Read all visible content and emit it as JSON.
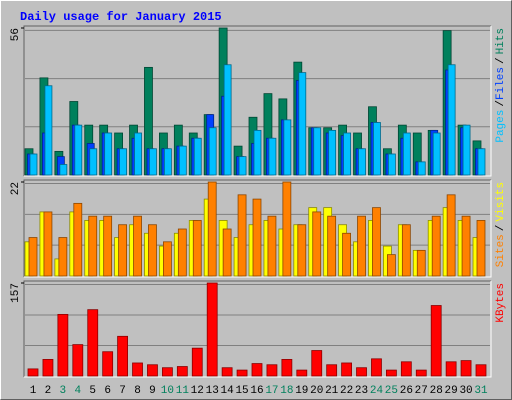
{
  "chart_data": [
    {
      "type": "bar",
      "title": "Daily usage for January 2015",
      "categories": [
        "1",
        "2",
        "3",
        "4",
        "5",
        "6",
        "7",
        "8",
        "9",
        "10",
        "11",
        "12",
        "13",
        "14",
        "15",
        "16",
        "17",
        "18",
        "19",
        "20",
        "21",
        "22",
        "23",
        "24",
        "25",
        "26",
        "27",
        "28",
        "29",
        "30",
        "31"
      ],
      "category_colors": [
        "#000000",
        "#000000",
        "#00805c",
        "#00805c",
        "#000000",
        "#000000",
        "#000000",
        "#000000",
        "#000000",
        "#00805c",
        "#00805c",
        "#000000",
        "#000000",
        "#000000",
        "#000000",
        "#000000",
        "#00805c",
        "#00805c",
        "#000000",
        "#000000",
        "#000000",
        "#000000",
        "#000000",
        "#00805c",
        "#00805c",
        "#000000",
        "#000000",
        "#000000",
        "#000000",
        "#000000",
        "#00805c"
      ],
      "ylim": [
        0,
        56
      ],
      "yticks": [
        56
      ],
      "legend_separator": "/",
      "series": [
        {
          "name": "Hits",
          "color": "#00805c",
          "values": [
            10,
            37,
            9,
            28,
            19,
            19,
            16,
            19,
            41,
            16,
            19,
            16,
            23,
            56,
            11,
            22,
            31,
            29,
            43,
            18,
            18,
            19,
            16,
            26,
            10,
            19,
            16,
            17,
            55,
            19,
            13
          ]
        },
        {
          "name": "Files",
          "color": "#0040ff",
          "values": [
            8,
            16,
            7,
            19,
            12,
            16,
            10,
            14,
            10,
            10,
            11,
            14,
            23,
            30,
            7,
            12,
            14,
            21,
            36,
            18,
            16,
            15,
            10,
            20,
            8,
            14,
            5,
            17,
            40,
            18,
            10
          ]
        },
        {
          "name": "Pages",
          "color": "#00c0ff",
          "values": [
            8,
            34,
            4,
            19,
            10,
            16,
            10,
            16,
            10,
            10,
            11,
            14,
            18,
            42,
            7,
            17,
            14,
            21,
            39,
            18,
            17,
            16,
            10,
            20,
            8,
            16,
            5,
            16,
            42,
            19,
            10
          ]
        }
      ]
    },
    {
      "type": "bar",
      "ylim": [
        0,
        22
      ],
      "yticks": [
        22
      ],
      "legend_separator": "/",
      "series": [
        {
          "name": "Visits",
          "color": "#ffff00",
          "values": [
            8,
            15,
            4,
            15,
            13,
            13,
            9,
            12,
            10,
            7,
            10,
            13,
            18,
            13,
            9,
            12,
            13,
            11,
            12,
            16,
            16,
            12,
            8,
            13,
            7,
            12,
            6,
            13,
            16,
            13,
            9
          ]
        },
        {
          "name": "Sites",
          "color": "#ff8000",
          "values": [
            9,
            15,
            9,
            17,
            14,
            14,
            12,
            14,
            12,
            8,
            11,
            13,
            22,
            11,
            19,
            18,
            14,
            22,
            12,
            15,
            14,
            10,
            14,
            16,
            5,
            12,
            6,
            14,
            19,
            14,
            13
          ]
        }
      ]
    },
    {
      "type": "bar",
      "ylim": [
        0,
        157
      ],
      "yticks": [
        157
      ],
      "series": [
        {
          "name": "KBytes",
          "color": "#ff0000",
          "values": [
            12,
            28,
            104,
            53,
            112,
            41,
            67,
            22,
            19,
            14,
            16,
            47,
            157,
            14,
            10,
            21,
            19,
            28,
            10,
            43,
            19,
            22,
            14,
            29,
            10,
            24,
            10,
            119,
            24,
            26,
            19
          ]
        }
      ]
    }
  ]
}
